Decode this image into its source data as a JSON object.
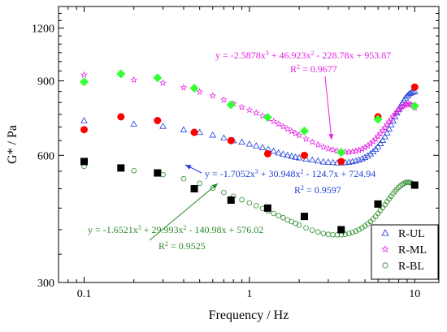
{
  "chart_data": {
    "type": "scatter",
    "xlabel": "Frequency / Hz",
    "ylabel": "G* / Pa",
    "xscale": "log",
    "yscale": "log",
    "xlim": [
      0.07,
      14
    ],
    "ylim": [
      300,
      1350
    ],
    "xticks": [
      0.1,
      1,
      10
    ],
    "xtick_labels": [
      "0.1",
      "1",
      "10"
    ],
    "yticks": [
      300,
      600,
      900,
      1200
    ],
    "ytick_labels": [
      "300",
      "600",
      "900",
      "1200"
    ],
    "grid": false,
    "legend_position": "bottom-right",
    "legend": [
      {
        "label": "R-UL",
        "color": "#1f3fd6",
        "marker": "triangle-open"
      },
      {
        "label": "R-ML",
        "color": "#e61ee6",
        "marker": "star-open"
      },
      {
        "label": "R-BL",
        "color": "#2a8a2a",
        "marker": "circle-open"
      }
    ],
    "series": [
      {
        "name": "R-UL",
        "marker": "triangle-open",
        "color": "#1f3fd6",
        "x": [
          0.1,
          0.2,
          0.3,
          0.4,
          0.5,
          0.6,
          0.7,
          0.8,
          0.9,
          1.0,
          1.1,
          1.2,
          1.3,
          1.4,
          1.5,
          1.6,
          1.7,
          1.8,
          1.9,
          2.0,
          2.2,
          2.4,
          2.6,
          2.8,
          3.0,
          3.2,
          3.4,
          3.6,
          3.8,
          4.0,
          4.2,
          4.4,
          4.6,
          4.8,
          5.0,
          5.2,
          5.4,
          5.6,
          5.8,
          6.0,
          6.2,
          6.4,
          6.6,
          6.8,
          7.0,
          7.2,
          7.4,
          7.6,
          7.8,
          8.0,
          8.2,
          8.4,
          8.6,
          8.8,
          9.0,
          9.2,
          9.4,
          9.6,
          9.8,
          10.0
        ],
        "y": [
          725,
          711,
          703,
          690,
          680,
          670,
          660,
          650,
          645,
          638,
          632,
          626,
          620,
          614,
          608,
          604,
          600,
          597,
          594,
          592,
          588,
          585,
          582,
          579,
          578,
          577,
          576,
          576,
          577,
          578,
          580,
          582,
          585,
          589,
          593,
          598,
          605,
          612,
          620,
          629,
          640,
          651,
          664,
          678,
          693,
          708,
          724,
          740,
          756,
          771,
          785,
          798,
          810,
          820,
          829,
          836,
          842,
          846,
          848,
          849
        ]
      },
      {
        "name": "R-ML",
        "marker": "star-open",
        "color": "#e61ee6",
        "x": [
          0.1,
          0.2,
          0.3,
          0.4,
          0.5,
          0.6,
          0.7,
          0.8,
          0.9,
          1.0,
          1.1,
          1.2,
          1.3,
          1.4,
          1.5,
          1.6,
          1.7,
          1.8,
          1.9,
          2.0,
          2.2,
          2.4,
          2.6,
          2.8,
          3.0,
          3.2,
          3.4,
          3.6,
          3.8,
          4.0,
          4.2,
          4.4,
          4.6,
          4.8,
          5.0,
          5.2,
          5.4,
          5.6,
          5.8,
          6.0,
          6.2,
          6.4,
          6.6,
          6.8,
          7.0,
          7.2,
          7.4,
          7.6,
          7.8,
          8.0,
          8.2,
          8.4,
          8.6,
          8.8,
          9.0,
          9.2,
          9.4,
          9.6,
          9.8,
          10.0
        ],
        "y": [
          930,
          905,
          890,
          868,
          848,
          830,
          812,
          795,
          780,
          768,
          756,
          744,
          733,
          722,
          712,
          702,
          693,
          684,
          676,
          669,
          656,
          645,
          636,
          628,
          622,
          618,
          614,
          612,
          611,
          611,
          612,
          614,
          617,
          621,
          626,
          632,
          639,
          647,
          656,
          666,
          676,
          687,
          698,
          709,
          720,
          731,
          741,
          751,
          760,
          768,
          775,
          781,
          786,
          790,
          792,
          793,
          792,
          789,
          784,
          777
        ]
      },
      {
        "name": "R-BL",
        "marker": "circle-open",
        "color": "#2a8a2a",
        "x": [
          0.1,
          0.2,
          0.3,
          0.4,
          0.5,
          0.6,
          0.7,
          0.8,
          0.9,
          1.0,
          1.1,
          1.2,
          1.3,
          1.4,
          1.5,
          1.6,
          1.7,
          1.8,
          1.9,
          2.0,
          2.2,
          2.4,
          2.6,
          2.8,
          3.0,
          3.2,
          3.4,
          3.6,
          3.8,
          4.0,
          4.2,
          4.4,
          4.6,
          4.8,
          5.0,
          5.2,
          5.4,
          5.6,
          5.8,
          6.0,
          6.2,
          6.4,
          6.6,
          6.8,
          7.0,
          7.2,
          7.4,
          7.6,
          7.8,
          8.0,
          8.2,
          8.4,
          8.6,
          8.8,
          9.0,
          9.2,
          9.4,
          9.6,
          9.8,
          10.0
        ],
        "y": [
          565,
          552,
          540,
          528,
          515,
          502,
          490,
          480,
          471,
          463,
          456,
          449,
          443,
          437,
          432,
          427,
          422,
          418,
          414,
          410,
          404,
          399,
          395,
          392,
          390,
          389,
          389,
          389,
          390,
          392,
          394,
          397,
          400,
          404,
          408,
          413,
          418,
          424,
          430,
          437,
          444,
          451,
          458,
          466,
          473,
          480,
          487,
          493,
          499,
          504,
          508,
          512,
          515,
          517,
          518,
          518,
          517,
          515,
          512,
          509
        ]
      },
      {
        "name": "",
        "marker": "square-filled",
        "color": "#000000",
        "x": [
          0.1,
          0.167,
          0.278,
          0.464,
          0.774,
          1.29,
          2.15,
          3.59,
          5.99,
          10.0
        ],
        "y": [
          580,
          560,
          545,
          500,
          470,
          450,
          430,
          400,
          460,
          510
        ]
      },
      {
        "name": "",
        "marker": "circle-filled",
        "color": "#ff0000",
        "x": [
          0.1,
          0.167,
          0.278,
          0.464,
          0.774,
          1.29,
          2.15,
          3.59,
          5.99,
          10.0
        ],
        "y": [
          690,
          740,
          725,
          680,
          650,
          605,
          600,
          580,
          740,
          870
        ]
      },
      {
        "name": "",
        "marker": "diamond-filled",
        "color": "#33ff33",
        "x": [
          0.1,
          0.167,
          0.278,
          0.464,
          0.774,
          1.29,
          2.15,
          3.59,
          5.99,
          10.0
        ],
        "y": [
          895,
          935,
          915,
          865,
          790,
          738,
          685,
          610,
          730,
          785
        ]
      }
    ],
    "annotations": [
      {
        "text": "y = -2.5878x³ + 46.923x² - 228.78x + 953.87",
        "color": "#e61ee6"
      },
      {
        "text": "R² = 0.9677",
        "color": "#e61ee6"
      },
      {
        "text": "y = -1.7052x³ + 30.948x² - 124.7x + 724.94",
        "color": "#1f3fd6"
      },
      {
        "text": "R² = 0.9597",
        "color": "#1f3fd6"
      },
      {
        "text": "y = -1.6521x³ + 29.993x² - 140.98x + 576.02",
        "color": "#2a8a2a"
      },
      {
        "text": "R² = 0.9525",
        "color": "#2a8a2a"
      }
    ]
  }
}
